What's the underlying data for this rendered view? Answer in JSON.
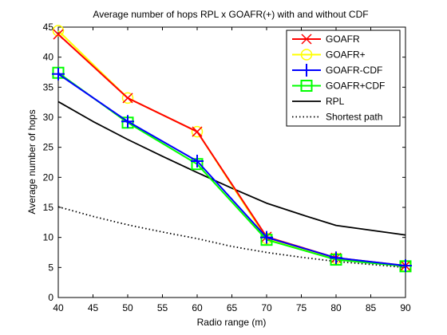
{
  "chart_data": {
    "type": "line",
    "title": "Average number of hops RPL x GOAFR(+) with and without CDF",
    "xlabel": "Radio range (m)",
    "ylabel": "Average number of hops",
    "xlim": [
      40,
      90
    ],
    "ylim": [
      0,
      45
    ],
    "xticks": [
      40,
      45,
      50,
      55,
      60,
      65,
      70,
      75,
      80,
      85,
      90
    ],
    "yticks": [
      0,
      5,
      10,
      15,
      20,
      25,
      30,
      35,
      40,
      45
    ],
    "grid": false,
    "legend_position": "top-right",
    "series": [
      {
        "name": "GOAFR",
        "color": "#ff0000",
        "marker": "x",
        "dash": "solid",
        "x": [
          40,
          50,
          60,
          70,
          80,
          90
        ],
        "y": [
          43.8,
          33.2,
          27.6,
          10.1,
          6.6,
          5.3
        ]
      },
      {
        "name": "GOAFR+",
        "color": "#ffff00",
        "marker": "circle",
        "dash": "solid",
        "x": [
          40,
          50,
          60,
          70,
          80,
          90
        ],
        "y": [
          44.4,
          33.2,
          27.6,
          9.8,
          6.5,
          5.2
        ]
      },
      {
        "name": "GOAFR-CDF",
        "color": "#0000ff",
        "marker": "plus",
        "dash": "solid",
        "x": [
          40,
          50,
          60,
          70,
          80,
          90
        ],
        "y": [
          37.2,
          29.3,
          22.7,
          10.0,
          6.6,
          5.3
        ]
      },
      {
        "name": "GOAFR+CDF",
        "color": "#00ff00",
        "marker": "square",
        "dash": "solid",
        "x": [
          40,
          50,
          60,
          70,
          80,
          90
        ],
        "y": [
          37.4,
          29.1,
          22.2,
          9.6,
          6.3,
          5.2
        ]
      },
      {
        "name": "RPL",
        "color": "#000000",
        "marker": "none",
        "dash": "solid",
        "x": [
          40,
          45,
          50,
          55,
          60,
          65,
          70,
          75,
          80,
          85,
          90
        ],
        "y": [
          32.6,
          29.3,
          26.3,
          23.5,
          20.8,
          18.2,
          15.7,
          13.8,
          12.0,
          11.2,
          10.4
        ]
      },
      {
        "name": "Shortest path",
        "color": "#000000",
        "marker": "none",
        "dash": "dotted",
        "x": [
          40,
          45,
          50,
          55,
          60,
          65,
          70,
          75,
          80,
          85,
          90
        ],
        "y": [
          15.1,
          13.5,
          12.1,
          10.9,
          9.8,
          8.5,
          7.5,
          6.7,
          6.0,
          5.5,
          5.0
        ]
      }
    ]
  }
}
